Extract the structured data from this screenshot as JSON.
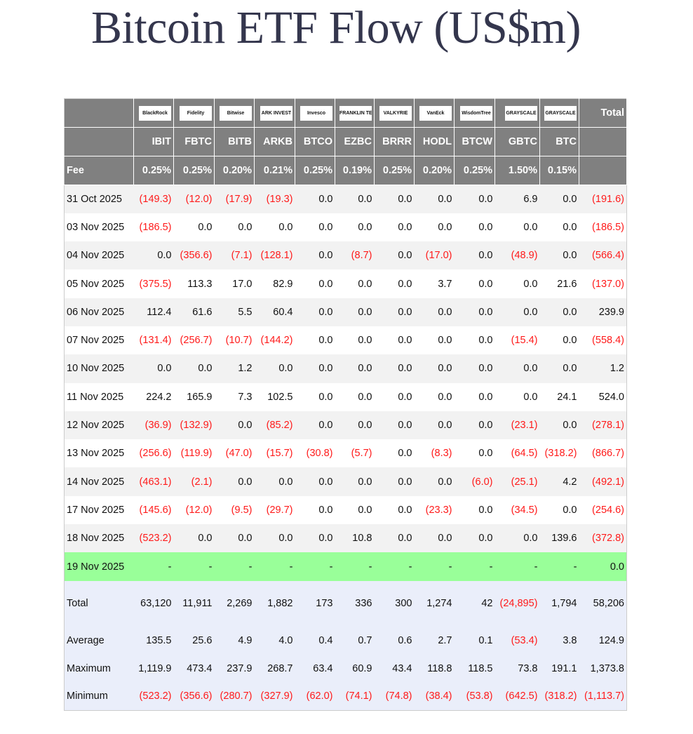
{
  "title": "Bitcoin ETF Flow (US$m)",
  "colors": {
    "header_bg": "#808080",
    "negative": "#ff1a1a",
    "today_row": "#99ff99",
    "summary_bg": "#eaeefa"
  },
  "columns": [
    {
      "logo": "BlackRock",
      "ticker": "IBIT",
      "fee": "0.25%"
    },
    {
      "logo": "Fidelity",
      "ticker": "FBTC",
      "fee": "0.25%"
    },
    {
      "logo": "Bitwise",
      "ticker": "BITB",
      "fee": "0.20%"
    },
    {
      "logo": "ARK INVEST",
      "ticker": "ARKB",
      "fee": "0.21%"
    },
    {
      "logo": "Invesco",
      "ticker": "BTCO",
      "fee": "0.25%"
    },
    {
      "logo": "FRANKLIN TEMPLETON",
      "ticker": "EZBC",
      "fee": "0.19%"
    },
    {
      "logo": "VALKYRIE",
      "ticker": "BRRR",
      "fee": "0.25%"
    },
    {
      "logo": "VanEck",
      "ticker": "HODL",
      "fee": "0.20%"
    },
    {
      "logo": "WisdomTree",
      "ticker": "BTCW",
      "fee": "0.25%"
    },
    {
      "logo": "GRAYSCALE",
      "ticker": "GBTC",
      "fee": "1.50%"
    },
    {
      "logo": "GRAYSCALE",
      "ticker": "BTC",
      "fee": "0.15%"
    }
  ],
  "total_header": "Total",
  "fee_label": "Fee",
  "rows": [
    {
      "date": "31 Oct 2025",
      "values": [
        "(149.3)",
        "(12.0)",
        "(17.9)",
        "(19.3)",
        "0.0",
        "0.0",
        "0.0",
        "0.0",
        "0.0",
        "6.9",
        "0.0",
        "(191.6)"
      ]
    },
    {
      "date": "03 Nov 2025",
      "values": [
        "(186.5)",
        "0.0",
        "0.0",
        "0.0",
        "0.0",
        "0.0",
        "0.0",
        "0.0",
        "0.0",
        "0.0",
        "0.0",
        "(186.5)"
      ]
    },
    {
      "date": "04 Nov 2025",
      "values": [
        "0.0",
        "(356.6)",
        "(7.1)",
        "(128.1)",
        "0.0",
        "(8.7)",
        "0.0",
        "(17.0)",
        "0.0",
        "(48.9)",
        "0.0",
        "(566.4)"
      ]
    },
    {
      "date": "05 Nov 2025",
      "values": [
        "(375.5)",
        "113.3",
        "17.0",
        "82.9",
        "0.0",
        "0.0",
        "0.0",
        "3.7",
        "0.0",
        "0.0",
        "21.6",
        "(137.0)"
      ]
    },
    {
      "date": "06 Nov 2025",
      "values": [
        "112.4",
        "61.6",
        "5.5",
        "60.4",
        "0.0",
        "0.0",
        "0.0",
        "0.0",
        "0.0",
        "0.0",
        "0.0",
        "239.9"
      ]
    },
    {
      "date": "07 Nov 2025",
      "values": [
        "(131.4)",
        "(256.7)",
        "(10.7)",
        "(144.2)",
        "0.0",
        "0.0",
        "0.0",
        "0.0",
        "0.0",
        "(15.4)",
        "0.0",
        "(558.4)"
      ]
    },
    {
      "date": "10 Nov 2025",
      "values": [
        "0.0",
        "0.0",
        "1.2",
        "0.0",
        "0.0",
        "0.0",
        "0.0",
        "0.0",
        "0.0",
        "0.0",
        "0.0",
        "1.2"
      ]
    },
    {
      "date": "11 Nov 2025",
      "values": [
        "224.2",
        "165.9",
        "7.3",
        "102.5",
        "0.0",
        "0.0",
        "0.0",
        "0.0",
        "0.0",
        "0.0",
        "24.1",
        "524.0"
      ]
    },
    {
      "date": "12 Nov 2025",
      "values": [
        "(36.9)",
        "(132.9)",
        "0.0",
        "(85.2)",
        "0.0",
        "0.0",
        "0.0",
        "0.0",
        "0.0",
        "(23.1)",
        "0.0",
        "(278.1)"
      ]
    },
    {
      "date": "13 Nov 2025",
      "values": [
        "(256.6)",
        "(119.9)",
        "(47.0)",
        "(15.7)",
        "(30.8)",
        "(5.7)",
        "0.0",
        "(8.3)",
        "0.0",
        "(64.5)",
        "(318.2)",
        "(866.7)"
      ]
    },
    {
      "date": "14 Nov 2025",
      "values": [
        "(463.1)",
        "(2.1)",
        "0.0",
        "0.0",
        "0.0",
        "0.0",
        "0.0",
        "0.0",
        "(6.0)",
        "(25.1)",
        "4.2",
        "(492.1)"
      ]
    },
    {
      "date": "17 Nov 2025",
      "values": [
        "(145.6)",
        "(12.0)",
        "(9.5)",
        "(29.7)",
        "0.0",
        "0.0",
        "0.0",
        "(23.3)",
        "0.0",
        "(34.5)",
        "0.0",
        "(254.6)"
      ]
    },
    {
      "date": "18 Nov 2025",
      "values": [
        "(523.2)",
        "0.0",
        "0.0",
        "0.0",
        "0.0",
        "10.8",
        "0.0",
        "0.0",
        "0.0",
        "0.0",
        "139.6",
        "(372.8)"
      ]
    },
    {
      "date": "19 Nov 2025",
      "today": true,
      "values": [
        "-",
        "-",
        "-",
        "-",
        "-",
        "-",
        "-",
        "-",
        "-",
        "-",
        "-",
        "0.0"
      ]
    }
  ],
  "summary": [
    {
      "label": "Total",
      "values": [
        "63,120",
        "11,911",
        "2,269",
        "1,882",
        "173",
        "336",
        "300",
        "1,274",
        "42",
        "(24,895)",
        "1,794",
        "58,206"
      ]
    },
    {
      "label": "Average",
      "values": [
        "135.5",
        "25.6",
        "4.9",
        "4.0",
        "0.4",
        "0.7",
        "0.6",
        "2.7",
        "0.1",
        "(53.4)",
        "3.8",
        "124.9"
      ]
    },
    {
      "label": "Maximum",
      "values": [
        "1,119.9",
        "473.4",
        "237.9",
        "268.7",
        "63.4",
        "60.9",
        "43.4",
        "118.8",
        "118.5",
        "73.8",
        "191.1",
        "1,373.8"
      ]
    },
    {
      "label": "Minimum",
      "values": [
        "(523.2)",
        "(356.6)",
        "(280.7)",
        "(327.9)",
        "(62.0)",
        "(74.1)",
        "(74.8)",
        "(38.4)",
        "(53.8)",
        "(642.5)",
        "(318.2)",
        "(1,113.7)"
      ]
    }
  ]
}
